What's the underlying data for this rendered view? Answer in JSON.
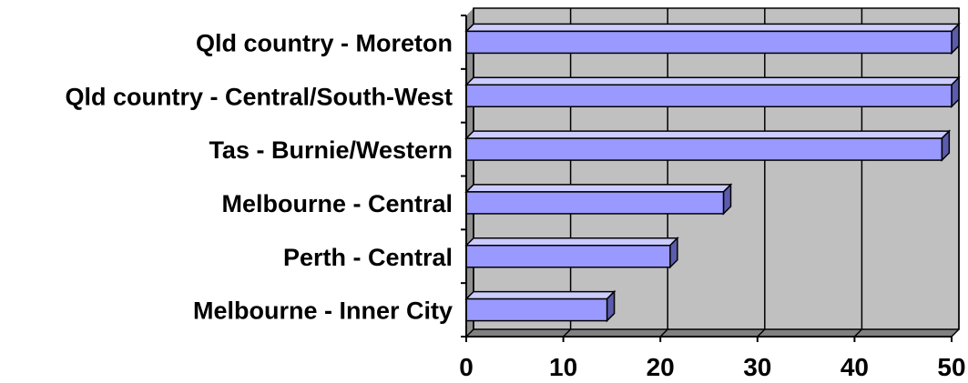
{
  "chart_data": {
    "type": "bar",
    "orientation": "horizontal",
    "style": "3d",
    "categories": [
      "Qld country - Moreton",
      "Qld country - Central/South-West",
      "Tas - Burnie/Western",
      "Melbourne - Central",
      "Perth - Central",
      "Melbourne - Inner City"
    ],
    "values": [
      50,
      50,
      49,
      26.5,
      21,
      14.5
    ],
    "xlim": [
      0,
      50
    ],
    "xticks": [
      0,
      10,
      20,
      30,
      40,
      50
    ],
    "grid": "vertical",
    "legend": "none",
    "colors": {
      "bar_front": "#9999ff",
      "bar_top": "#ccccff",
      "bar_side": "#5c5cad",
      "plot_back": "#c0c0c0",
      "axis": "#000000"
    }
  }
}
